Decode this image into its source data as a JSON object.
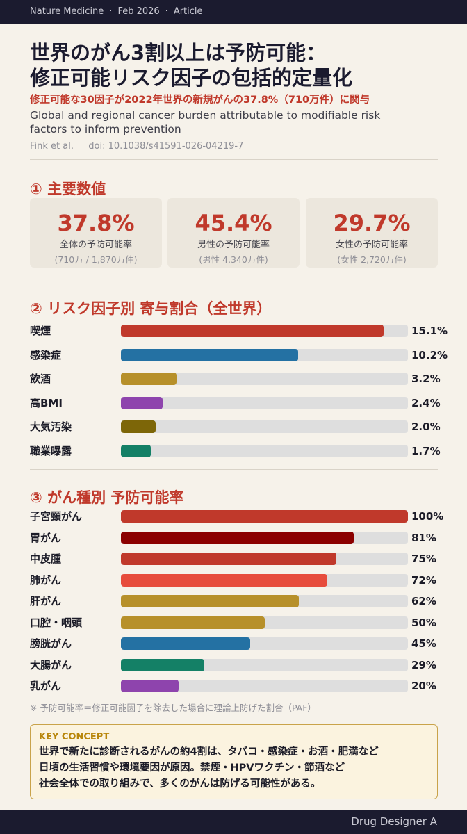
{
  "header": {
    "journal": "Nature Medicine",
    "sep": "·",
    "date": "Feb 2026",
    "type": "Article"
  },
  "title_line1": "世界のがん3割以上は予防可能：",
  "title_line2": "修正可能リスク因子の包括的定量化",
  "subtitle_jp": "修正可能な30因子が2022年世界の新規がんの37.8%（710万件）に関与",
  "subtitle_en": "Global and regional cancer burden attributable to modifiable risk factors to inform prevention",
  "citation": "Fink et al. ｜ doi: 10.1038/s41591-026-04219-7",
  "section1": {
    "heading": "① 主要数値",
    "stats": [
      {
        "value": "37.8%",
        "label": "全体の予防可能率",
        "sub": "(710万 / 1,870万件)"
      },
      {
        "value": "45.4%",
        "label": "男性の予防可能率",
        "sub": "(男性 4,340万件)"
      },
      {
        "value": "29.7%",
        "label": "女性の予防可能率",
        "sub": "(女性 2,720万件)"
      }
    ]
  },
  "section2": {
    "heading": "② リスク因子別 寄与割合（全世界）"
  },
  "section3": {
    "heading": "③ がん種別 予防可能率"
  },
  "chart_data": [
    {
      "type": "bar",
      "orientation": "horizontal",
      "title": "② リスク因子別 寄与割合（全世界）",
      "categories": [
        "喫煙",
        "感染症",
        "飲酒",
        "高BMI",
        "大気汚染",
        "職業曝露"
      ],
      "values": [
        15.1,
        10.2,
        3.2,
        2.4,
        2.0,
        1.7
      ],
      "labels": [
        "15.1%",
        "10.2%",
        "3.2%",
        "2.4%",
        "2.0%",
        "1.7%"
      ],
      "colors": [
        "#c0392b",
        "#2471a3",
        "#b7902a",
        "#8e44ad",
        "#7d6608",
        "#148066"
      ],
      "xlim": [
        0,
        16.5
      ]
    },
    {
      "type": "bar",
      "orientation": "horizontal",
      "title": "③ がん種別 予防可能率",
      "categories": [
        "子宮頸がん",
        "胃がん",
        "中皮腫",
        "肺がん",
        "肝がん",
        "口腔・咽頭",
        "膀胱がん",
        "大腸がん",
        "乳がん"
      ],
      "values": [
        100,
        81,
        75,
        72,
        62,
        50,
        45,
        29,
        20
      ],
      "labels": [
        "100%",
        "81%",
        "75%",
        "72%",
        "62%",
        "50%",
        "45%",
        "29%",
        "20%"
      ],
      "colors": [
        "#c0392b",
        "#8b0000",
        "#c0392b",
        "#e74c3c",
        "#b7902a",
        "#b7902a",
        "#2471a3",
        "#148066",
        "#8e44ad"
      ],
      "xlim": [
        0,
        100
      ]
    }
  ],
  "footnote": "※ 予防可能率＝修正可能因子を除去した場合に理論上防げた割合（PAF）",
  "concept": {
    "heading": "KEY CONCEPT",
    "line1": "世界で新たに診断されるがんの約4割は、タバコ・感染症・お酒・肥満など",
    "line2": "日頃の生活習慣や環境要因が原因。禁煙・HPVワクチン・節酒など",
    "line3": "社会全体での取り組みで、多くのがんは防げる可能性がある。"
  },
  "footer": {
    "credit": "Drug Designer A"
  }
}
